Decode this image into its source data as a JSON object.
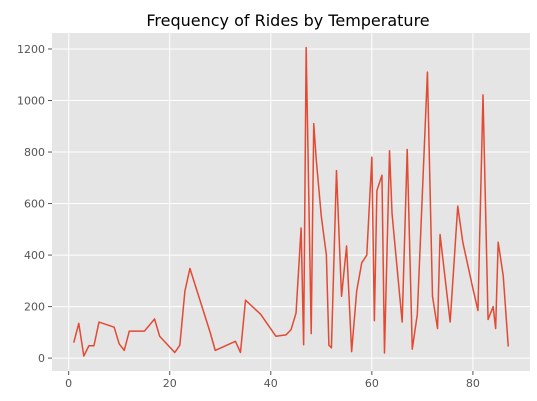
{
  "chart_data": {
    "type": "line",
    "title": "Frequency of Rides by Temperature",
    "xlabel": "",
    "ylabel": "",
    "xlim": [
      -3.3,
      91.3
    ],
    "ylim": [
      -50,
      1262
    ],
    "x_ticks": [
      0,
      20,
      40,
      60,
      80
    ],
    "y_ticks": [
      0,
      200,
      400,
      600,
      800,
      1000,
      1200
    ],
    "grid": true,
    "colors": {
      "plot_background": "#e5e5e5",
      "line": "#e24a33",
      "grid": "#ffffff",
      "text": "#555555"
    },
    "series": [
      {
        "x": [
          1,
          2,
          3,
          4,
          5,
          6,
          9,
          10,
          11,
          12,
          15,
          17,
          18,
          21,
          22,
          23,
          24,
          28,
          29,
          33,
          34,
          35,
          38,
          41,
          43,
          44,
          45,
          46,
          46.5,
          47,
          48,
          48.5,
          49,
          50,
          51,
          51.5,
          52,
          53,
          54,
          55,
          56,
          57,
          58,
          59,
          60,
          60.5,
          61,
          62,
          62.5,
          63.5,
          64,
          66,
          67,
          68,
          69,
          71,
          72,
          73,
          73.5,
          75.5,
          77,
          78,
          80,
          81,
          82,
          83,
          84,
          84.5,
          85,
          86,
          87
        ],
        "y": [
          60,
          135,
          8,
          48,
          48,
          140,
          120,
          55,
          30,
          105,
          105,
          152,
          85,
          22,
          50,
          260,
          348,
          100,
          30,
          65,
          22,
          225,
          170,
          85,
          90,
          110,
          175,
          505,
          52,
          1205,
          95,
          910,
          770,
          550,
          400,
          50,
          40,
          728,
          240,
          435,
          25,
          260,
          370,
          400,
          780,
          145,
          650,
          710,
          20,
          805,
          560,
          140,
          810,
          35,
          170,
          1110,
          240,
          115,
          480,
          140,
          590,
          450,
          270,
          185,
          1022,
          150,
          200,
          115,
          450,
          320,
          45
        ]
      }
    ]
  }
}
